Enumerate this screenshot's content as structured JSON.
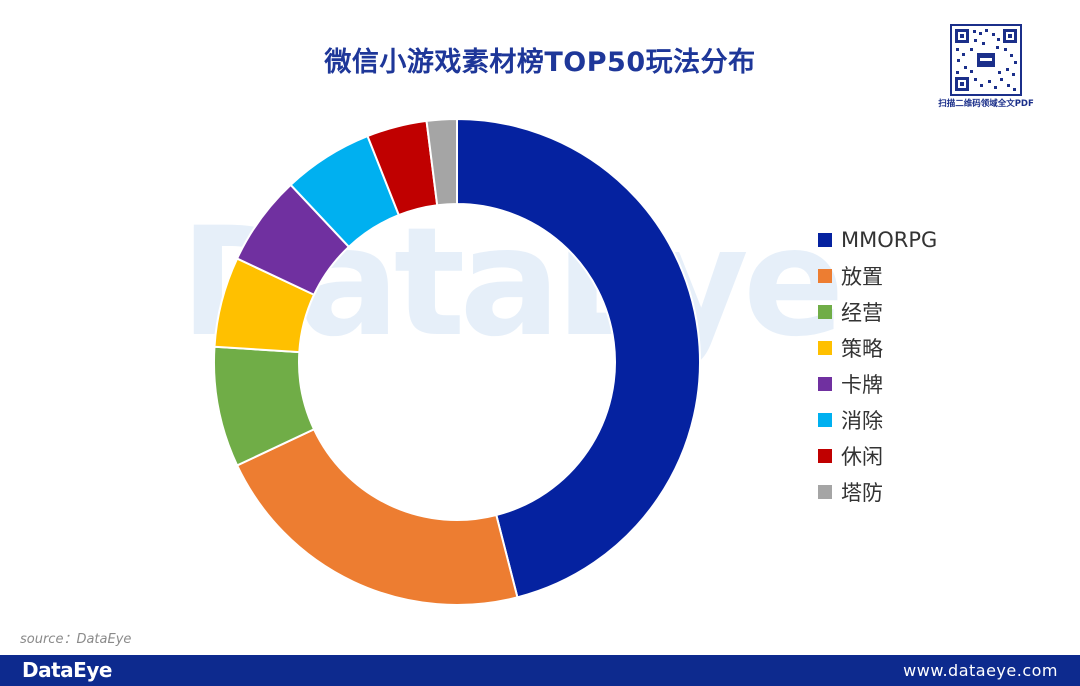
{
  "header": {
    "title": "微信小游戏素材榜TOP50玩法分布",
    "qr_caption": "扫描二维码领域全文PDF"
  },
  "watermark": "DataEye",
  "source": "source：DataEye",
  "footer": {
    "logo": "DataEye",
    "url": "www.dataeye.com"
  },
  "chart_data": {
    "type": "pie",
    "variant": "donut",
    "title": "微信小游戏素材榜TOP50玩法分布",
    "legend_position": "right",
    "categories": [
      "MMORPG",
      "放置",
      "经营",
      "策略",
      "卡牌",
      "消除",
      "休闲",
      "塔防"
    ],
    "values": [
      46,
      22,
      8,
      6,
      6,
      6,
      4,
      2
    ],
    "unit": "%",
    "colors": [
      "#0522a0",
      "#ed7d31",
      "#70ad47",
      "#ffc000",
      "#7030a0",
      "#00b0f0",
      "#c00000",
      "#a5a5a5"
    ]
  }
}
